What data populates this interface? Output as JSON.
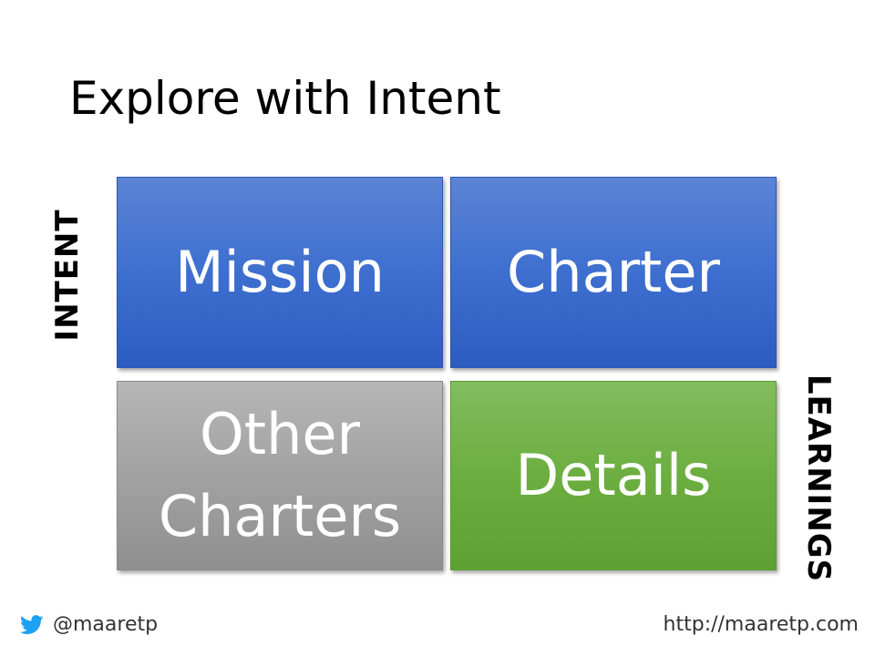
{
  "slide": {
    "title": "Explore with Intent",
    "axis": {
      "vertical_label": "INTENT",
      "right_label": "LEARNINGS"
    },
    "boxes": {
      "mission": {
        "label": "Mission"
      },
      "charter": {
        "label": "Charter"
      },
      "other_charters": {
        "line1": "Other",
        "line2": "Charters"
      },
      "details": {
        "label": "Details"
      }
    },
    "footer": {
      "twitter_handle": "@maaretp",
      "url": "http://maaretp.com"
    },
    "colors": {
      "blue_box": "#3e6fd0",
      "gray_box": "#a2a2a2",
      "green_box": "#6cae40",
      "twitter_blue": "#1da1f2"
    }
  }
}
